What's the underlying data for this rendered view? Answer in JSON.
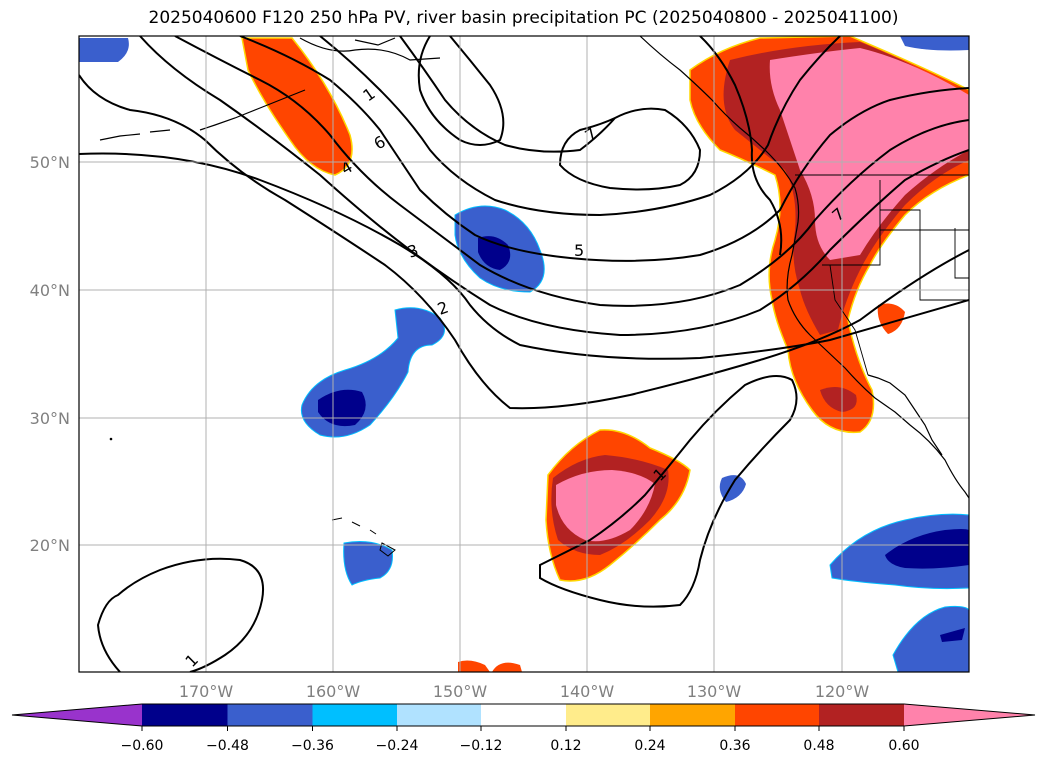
{
  "title": "2025040600 F120 250 hPa PV, river basin precipitation PC (2025040800 - 2025041100)",
  "map": {
    "lon_range": [
      -180,
      -110
    ],
    "lat_range": [
      10,
      60
    ],
    "lat_ticks": [
      {
        "value": 50,
        "label": "50°N"
      },
      {
        "value": 40,
        "label": "40°N"
      },
      {
        "value": 30,
        "label": "30°N"
      },
      {
        "value": 20,
        "label": "20°N"
      }
    ],
    "lon_ticks": [
      {
        "value": -170,
        "label": "170°W"
      },
      {
        "value": -160,
        "label": "160°W"
      },
      {
        "value": -150,
        "label": "150°W"
      },
      {
        "value": -140,
        "label": "140°W"
      },
      {
        "value": -130,
        "label": "130°W"
      },
      {
        "value": -120,
        "label": "120°W"
      }
    ],
    "grid": true,
    "pv_contour_labels": [
      "1",
      "2",
      "3",
      "4",
      "5",
      "6",
      "7",
      "1",
      "7",
      "1"
    ]
  },
  "colorbar": {
    "ticks": [
      "−0.60",
      "−0.48",
      "−0.36",
      "−0.24",
      "−0.12",
      "0.12",
      "0.24",
      "0.36",
      "0.48",
      "0.60"
    ],
    "colors": [
      "#9933cc",
      "#00008b",
      "#3a5fcd",
      "#00bfff",
      "#b0e2ff",
      "#ffffff",
      "#ffec8b",
      "#ffa500",
      "#ff4500",
      "#b22222",
      "#ff82ab"
    ],
    "extend": "both"
  }
}
